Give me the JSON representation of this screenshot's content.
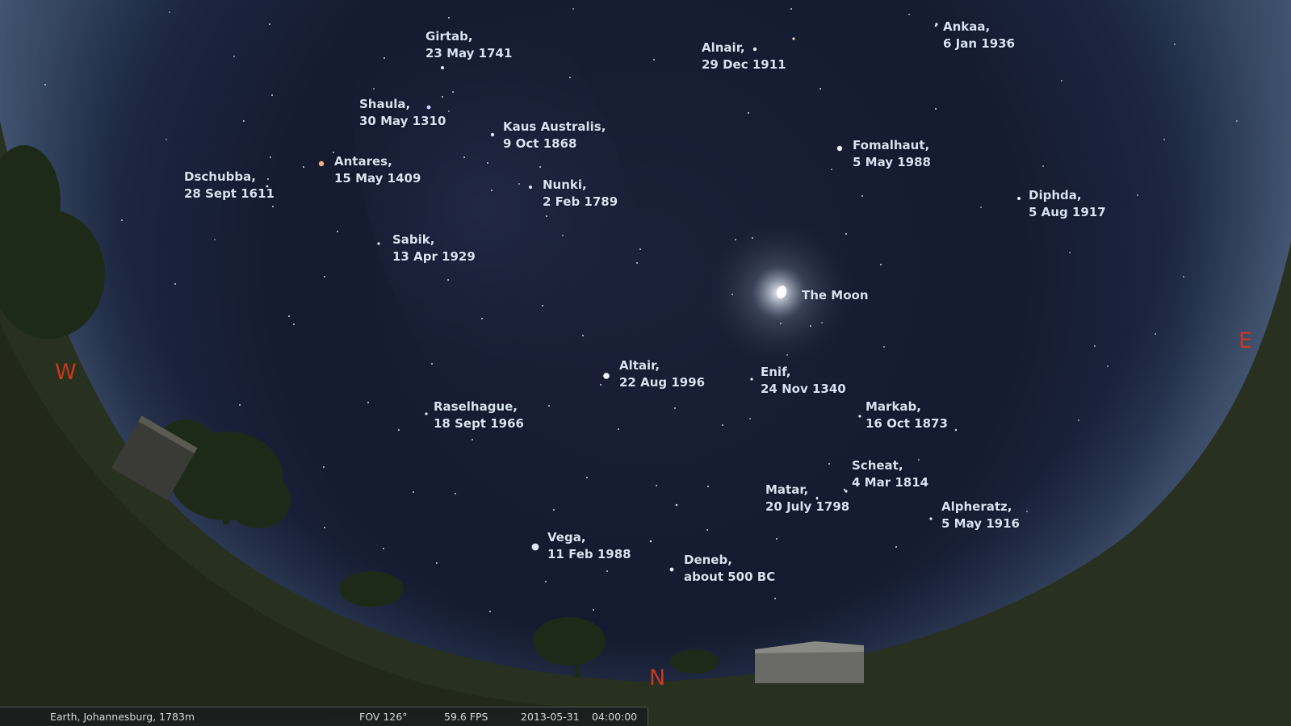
{
  "status_bar": {
    "location": "Earth, Johannesburg, 1783m",
    "fov": "FOV 126°",
    "fps": "59.6 FPS",
    "date": "2013-05-31",
    "time": "04:00:00"
  },
  "compass": {
    "west": "W",
    "north": "N",
    "east": "E"
  },
  "moon_label": "The Moon",
  "stars": [
    {
      "name": "Girtab,",
      "date": "23 May 1741"
    },
    {
      "name": "Alnair,",
      "date": "29 Dec 1911"
    },
    {
      "name": "Ankaa,",
      "date": "6 Jan 1936"
    },
    {
      "name": "Shaula,",
      "date": "30 May 1310"
    },
    {
      "name": "Kaus Australis,",
      "date": "9 Oct 1868"
    },
    {
      "name": "Fomalhaut,",
      "date": "5 May 1988"
    },
    {
      "name": "Antares,",
      "date": "15 May 1409"
    },
    {
      "name": "Dschubba,",
      "date": "28 Sept 1611"
    },
    {
      "name": "Nunki,",
      "date": "2 Feb 1789"
    },
    {
      "name": "Diphda,",
      "date": "5 Aug 1917"
    },
    {
      "name": "Sabik,",
      "date": "13 Apr 1929"
    },
    {
      "name": "Altair,",
      "date": "22 Aug 1996"
    },
    {
      "name": "Enif,",
      "date": "24 Nov 1340"
    },
    {
      "name": "Raselhague,",
      "date": "18 Sept 1966"
    },
    {
      "name": "Markab,",
      "date": "16 Oct 1873"
    },
    {
      "name": "Scheat,",
      "date": "4 Mar 1814"
    },
    {
      "name": "Matar,",
      "date": "20 July 1798"
    },
    {
      "name": "Alpheratz,",
      "date": "5 May 1916"
    },
    {
      "name": "Vega,",
      "date": "11 Feb 1988"
    },
    {
      "name": "Deneb,",
      "date": "about 500 BC"
    }
  ]
}
